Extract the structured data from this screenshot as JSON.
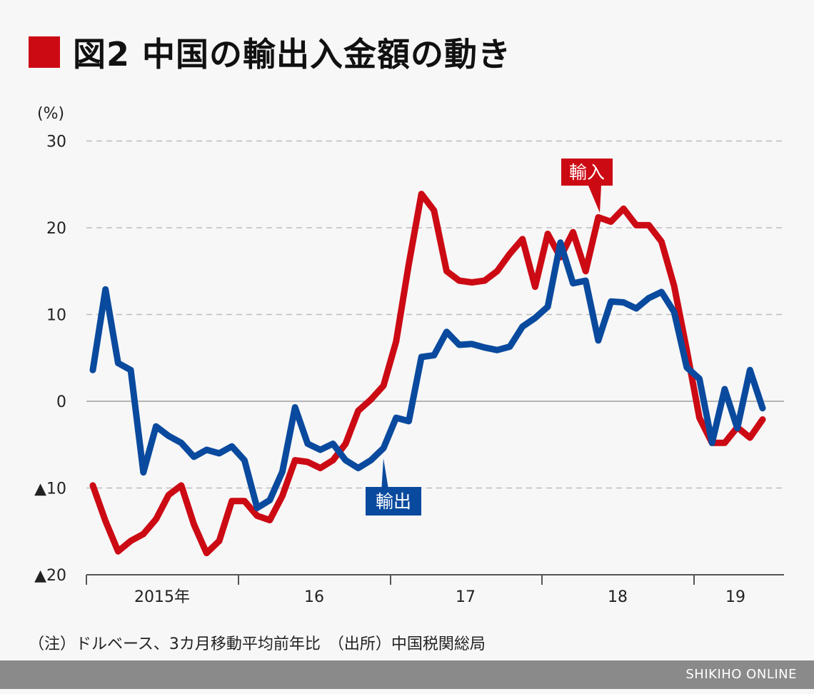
{
  "header": {
    "title": "図2 中国の輸出入金額の動き"
  },
  "colors": {
    "import": "#cc0a14",
    "export": "#0a4a9e",
    "accent": "#cc0a14"
  },
  "chart_data": {
    "type": "line",
    "title": "図2 中国の輸出入金額の動き",
    "ylabel": "(%)",
    "ylim": [
      -20,
      30
    ],
    "yticks": [
      30,
      20,
      10,
      0,
      -10,
      -20
    ],
    "ytick_labels": [
      "30",
      "20",
      "10",
      "0",
      "▲10",
      "▲20"
    ],
    "xtick_labels": [
      "2015年",
      "16",
      "17",
      "18",
      "19"
    ],
    "x_range": "2015-01 to 2019-06 (monthly)",
    "grid": true,
    "series": [
      {
        "name": "輸入",
        "color": "#cc0a14",
        "values": [
          -9.7,
          -13.8,
          -17.3,
          -16.1,
          -15.3,
          -13.6,
          -10.8,
          -9.7,
          -14.2,
          -17.5,
          -16.1,
          -11.5,
          -11.5,
          -13.2,
          -13.7,
          -10.9,
          -6.8,
          -7.0,
          -7.7,
          -6.8,
          -4.9,
          -1.1,
          0.2,
          1.8,
          6.9,
          15.8,
          23.9,
          22.0,
          15.0,
          13.9,
          13.7,
          13.9,
          15.0,
          17.0,
          18.7,
          13.2,
          19.3,
          16.6,
          19.5,
          15.0,
          21.2,
          20.7,
          22.2,
          20.3,
          20.3,
          18.4,
          13.3,
          5.9,
          -1.9,
          -4.8,
          -4.8,
          -3.0,
          -4.2,
          -2.1
        ]
      },
      {
        "name": "輸出",
        "color": "#0a4a9e",
        "values": [
          3.6,
          12.9,
          4.4,
          3.6,
          -8.2,
          -2.9,
          -4.0,
          -4.8,
          -6.4,
          -5.6,
          -6.0,
          -5.2,
          -6.8,
          -12.3,
          -11.4,
          -8.1,
          -0.7,
          -4.9,
          -5.6,
          -4.9,
          -6.8,
          -7.7,
          -6.8,
          -5.4,
          -1.9,
          -2.3,
          5.1,
          5.3,
          8.0,
          6.5,
          6.6,
          6.2,
          5.9,
          6.3,
          8.6,
          9.6,
          10.9,
          18.3,
          13.6,
          13.9,
          7.0,
          11.5,
          11.4,
          10.7,
          11.9,
          12.6,
          10.3,
          3.9,
          2.6,
          -4.8,
          1.4,
          -3.1,
          3.6,
          -0.8
        ]
      }
    ]
  },
  "note": "（注）ドルベース、3カ月移動平均前年比　（出所）中国税関総局",
  "footer": {
    "brand": "SHIKIHO ONLINE"
  }
}
